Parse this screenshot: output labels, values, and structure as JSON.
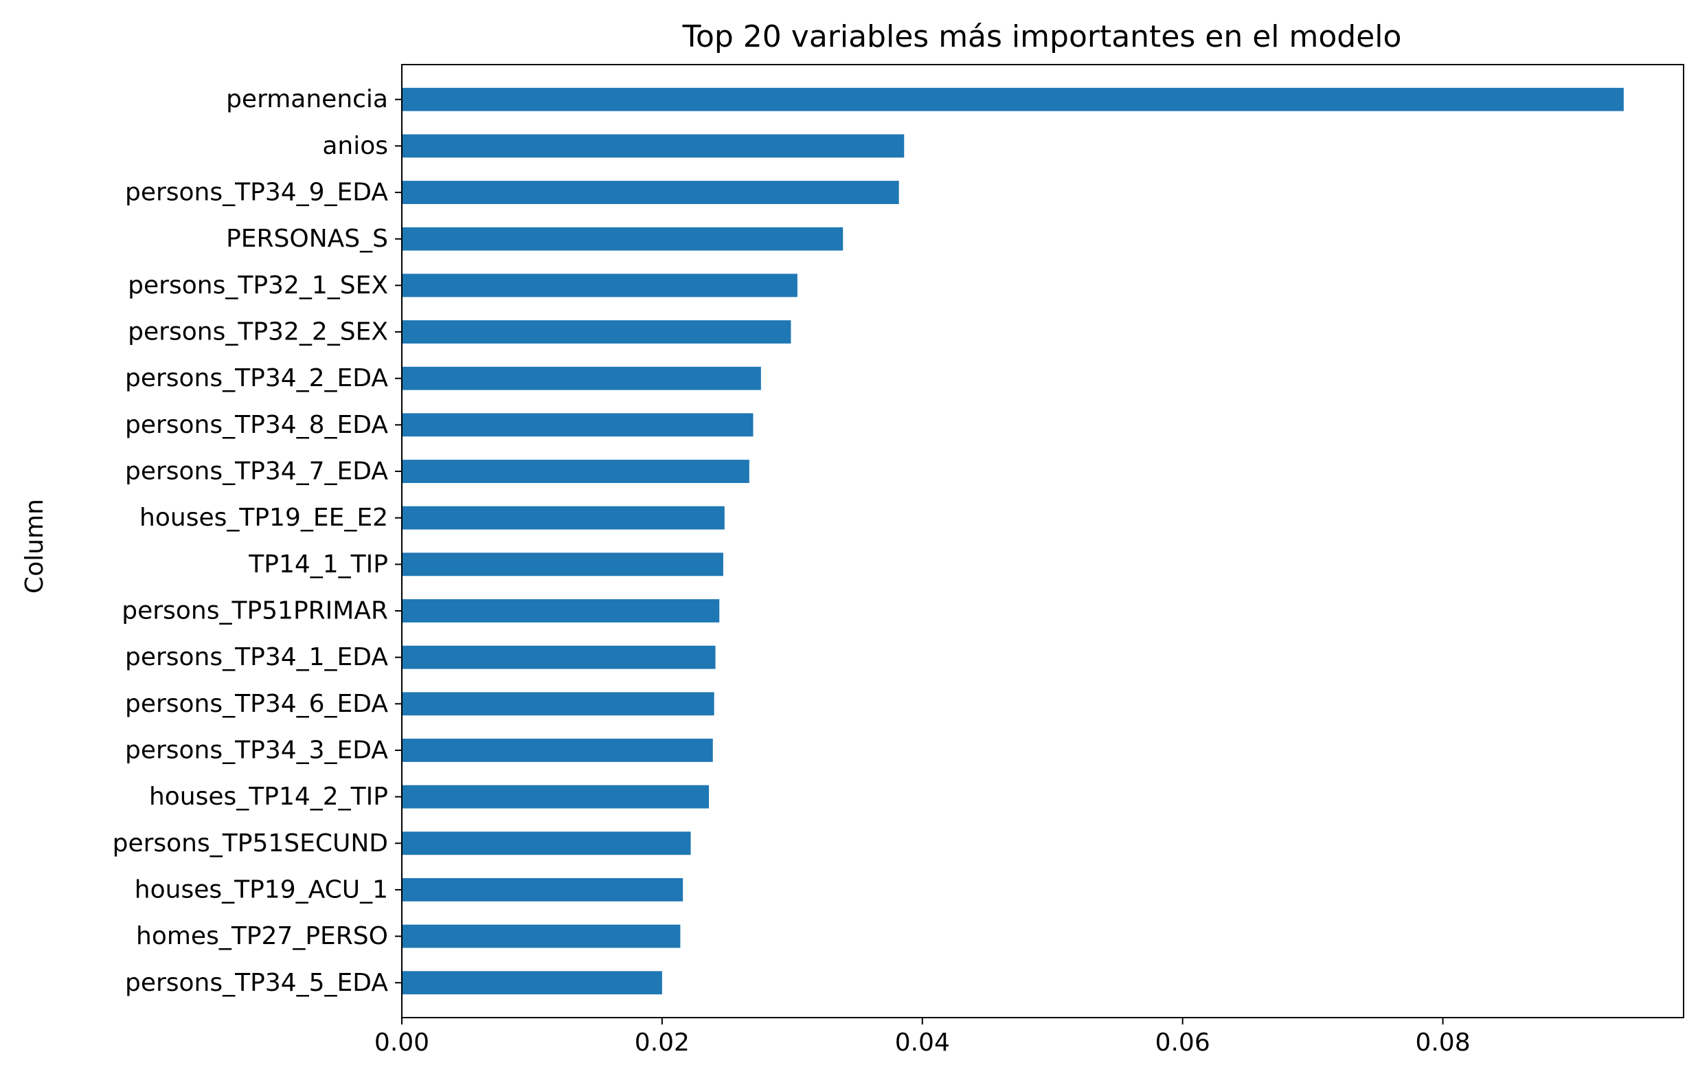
{
  "chart_data": {
    "type": "bar",
    "orientation": "horizontal",
    "title": "Top 20 variables más importantes en el modelo",
    "xlabel": "",
    "ylabel": "Column",
    "xlim": [
      0,
      0.0985
    ],
    "xticks": [
      "0.00",
      "0.02",
      "0.04",
      "0.06",
      "0.08"
    ],
    "xtick_values": [
      0,
      0.02,
      0.04,
      0.06,
      0.08
    ],
    "grid": false,
    "bar_color": "#1f77b4",
    "categories": [
      "permanencia",
      "anios",
      "persons_TP34_9_EDA",
      "PERSONAS_S",
      "persons_TP32_1_SEX",
      "persons_TP32_2_SEX",
      "persons_TP34_2_EDA",
      "persons_TP34_8_EDA",
      "persons_TP34_7_EDA",
      "houses_TP19_EE_E2",
      "TP14_1_TIP",
      "persons_TP51PRIMAR",
      "persons_TP34_1_EDA",
      "persons_TP34_6_EDA",
      "persons_TP34_3_EDA",
      "houses_TP14_2_TIP",
      "persons_TP51SECUND",
      "houses_TP19_ACU_1",
      "homes_TP27_PERSO",
      "persons_TP34_5_EDA"
    ],
    "values": [
      0.0939,
      0.0386,
      0.0382,
      0.0339,
      0.0304,
      0.0299,
      0.0276,
      0.027,
      0.0267,
      0.0248,
      0.0247,
      0.0244,
      0.0241,
      0.024,
      0.0239,
      0.0236,
      0.0222,
      0.0216,
      0.0214,
      0.02
    ]
  }
}
